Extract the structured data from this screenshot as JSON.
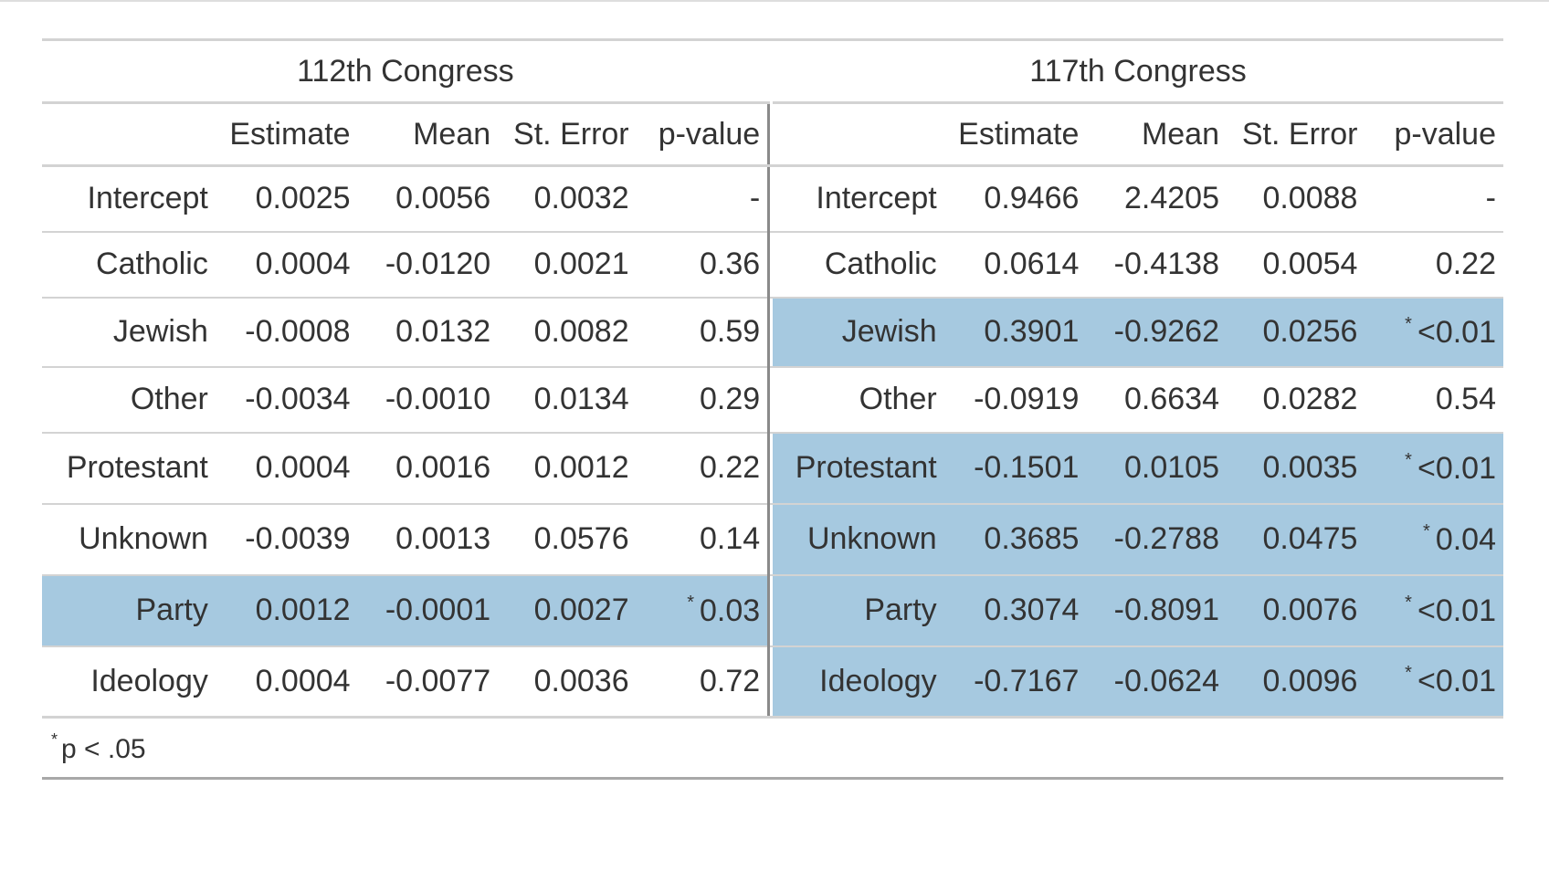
{
  "table": {
    "groups": [
      {
        "label": "112th Congress"
      },
      {
        "label": "117th Congress"
      }
    ],
    "columns": [
      "Estimate",
      "Mean",
      "St. Error",
      "p-value"
    ],
    "star_symbol": "*",
    "rows": [
      {
        "label": "Intercept",
        "c112": {
          "estimate": "0.0025",
          "mean": "0.0056",
          "se": "0.0032",
          "p": "-",
          "sig": false
        },
        "c117": {
          "estimate": "0.9466",
          "mean": "2.4205",
          "se": "0.0088",
          "p": "-",
          "sig": false
        }
      },
      {
        "label": "Catholic",
        "c112": {
          "estimate": "0.0004",
          "mean": "-0.0120",
          "se": "0.0021",
          "p": "0.36",
          "sig": false
        },
        "c117": {
          "estimate": "0.0614",
          "mean": "-0.4138",
          "se": "0.0054",
          "p": "0.22",
          "sig": false
        }
      },
      {
        "label": "Jewish",
        "c112": {
          "estimate": "-0.0008",
          "mean": "0.0132",
          "se": "0.0082",
          "p": "0.59",
          "sig": false
        },
        "c117": {
          "estimate": "0.3901",
          "mean": "-0.9262",
          "se": "0.0256",
          "p": "<0.01",
          "sig": true
        }
      },
      {
        "label": "Other",
        "c112": {
          "estimate": "-0.0034",
          "mean": "-0.0010",
          "se": "0.0134",
          "p": "0.29",
          "sig": false
        },
        "c117": {
          "estimate": "-0.0919",
          "mean": "0.6634",
          "se": "0.0282",
          "p": "0.54",
          "sig": false
        }
      },
      {
        "label": "Protestant",
        "c112": {
          "estimate": "0.0004",
          "mean": "0.0016",
          "se": "0.0012",
          "p": "0.22",
          "sig": false
        },
        "c117": {
          "estimate": "-0.1501",
          "mean": "0.0105",
          "se": "0.0035",
          "p": "<0.01",
          "sig": true
        }
      },
      {
        "label": "Unknown",
        "c112": {
          "estimate": "-0.0039",
          "mean": "0.0013",
          "se": "0.0576",
          "p": "0.14",
          "sig": false
        },
        "c117": {
          "estimate": "0.3685",
          "mean": "-0.2788",
          "se": "0.0475",
          "p": "0.04",
          "sig": true
        }
      },
      {
        "label": "Party",
        "c112": {
          "estimate": "0.0012",
          "mean": "-0.0001",
          "se": "0.0027",
          "p": "0.03",
          "sig": true
        },
        "c117": {
          "estimate": "0.3074",
          "mean": "-0.8091",
          "se": "0.0076",
          "p": "<0.01",
          "sig": true
        }
      },
      {
        "label": "Ideology",
        "c112": {
          "estimate": "0.0004",
          "mean": "-0.0077",
          "se": "0.0036",
          "p": "0.72",
          "sig": false
        },
        "c117": {
          "estimate": "-0.7167",
          "mean": "-0.0624",
          "se": "0.0096",
          "p": "<0.01",
          "sig": true
        }
      }
    ],
    "footnote": "p < .05",
    "highlight_color": "#a6c9e0"
  }
}
